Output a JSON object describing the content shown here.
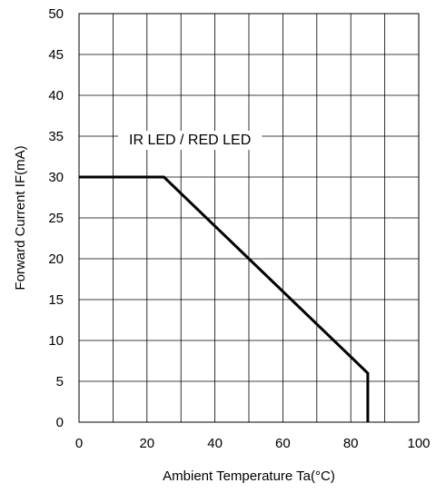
{
  "chart_data": {
    "type": "line",
    "title": "",
    "xlabel": "Ambient Temperature Ta(°C)",
    "ylabel": "Forward Current IF(mA)",
    "xlim": [
      0,
      100
    ],
    "ylim": [
      0,
      50
    ],
    "x_ticks": [
      0,
      20,
      40,
      60,
      80,
      100
    ],
    "x_minor_ticks": [
      0,
      10,
      20,
      30,
      40,
      50,
      60,
      70,
      80,
      90,
      100
    ],
    "y_ticks": [
      0,
      5,
      10,
      15,
      20,
      25,
      30,
      35,
      40,
      45,
      50
    ],
    "grid": true,
    "series": [
      {
        "name": "",
        "color": "#000000",
        "points": [
          {
            "x": 0,
            "y": 30
          },
          {
            "x": 25,
            "y": 30
          },
          {
            "x": 85,
            "y": 6
          },
          {
            "x": 85,
            "y": 0
          }
        ]
      }
    ],
    "annotation": "IR LED / RED LED",
    "colors": {
      "line": "#000000",
      "grid": "#000000",
      "background": "#ffffff"
    }
  }
}
